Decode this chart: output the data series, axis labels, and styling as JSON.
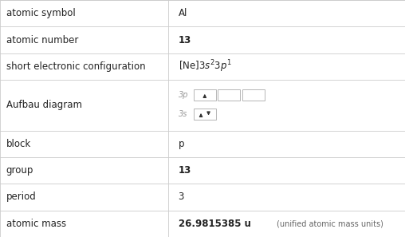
{
  "rows": [
    {
      "label": "atomic symbol",
      "value": "Al",
      "bold": false,
      "type": "text"
    },
    {
      "label": "atomic number",
      "value": "13",
      "bold": true,
      "type": "text"
    },
    {
      "label": "short electronic configuration",
      "value": "",
      "bold": false,
      "type": "config"
    },
    {
      "label": "Aufbau diagram",
      "value": "",
      "bold": false,
      "type": "aufbau"
    },
    {
      "label": "block",
      "value": "p",
      "bold": false,
      "type": "text"
    },
    {
      "label": "group",
      "value": "13",
      "bold": true,
      "type": "text"
    },
    {
      "label": "period",
      "value": "3",
      "bold": false,
      "type": "text"
    },
    {
      "label": "atomic mass",
      "value": "26.9815385",
      "bold": false,
      "type": "mass"
    }
  ],
  "row_heights": [
    1,
    1,
    1,
    1.9,
    1,
    1,
    1,
    1
  ],
  "col_split": 0.415,
  "bg_color": "#ffffff",
  "grid_color": "#cccccc",
  "text_color": "#222222",
  "label_color": "#222222",
  "small_color": "#777777",
  "label_fontsize": 8.5,
  "value_fontsize": 8.5,
  "mass_small_fontsize": 7.0,
  "aufbau_label_fontsize": 7.0,
  "aufbau_label_color": "#999999"
}
